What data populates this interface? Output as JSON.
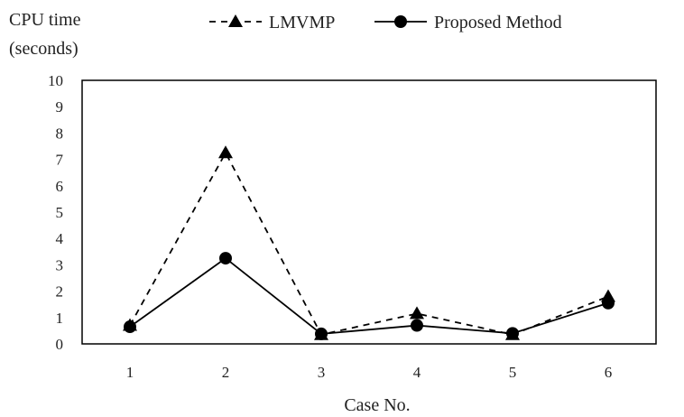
{
  "chart_data": {
    "type": "line",
    "categories": [
      "1",
      "2",
      "3",
      "4",
      "5",
      "6"
    ],
    "series": [
      {
        "name": "LMVMP",
        "values": [
          0.7,
          7.25,
          0.35,
          1.15,
          0.35,
          1.8
        ],
        "line_style": "dashed",
        "marker": "triangle",
        "color": "#000000"
      },
      {
        "name": "Proposed Method",
        "values": [
          0.65,
          3.25,
          0.38,
          0.7,
          0.4,
          1.55
        ],
        "line_style": "solid",
        "marker": "circle",
        "color": "#000000"
      }
    ],
    "ylabel_line1": "CPU time",
    "ylabel_line2": "(seconds)",
    "xlabel": "Case No.",
    "ylim": [
      0,
      10
    ],
    "yticks": [
      "0",
      "1",
      "2",
      "3",
      "4",
      "5",
      "6",
      "7",
      "8",
      "9",
      "10"
    ],
    "grid": false,
    "legend_position": "top"
  }
}
